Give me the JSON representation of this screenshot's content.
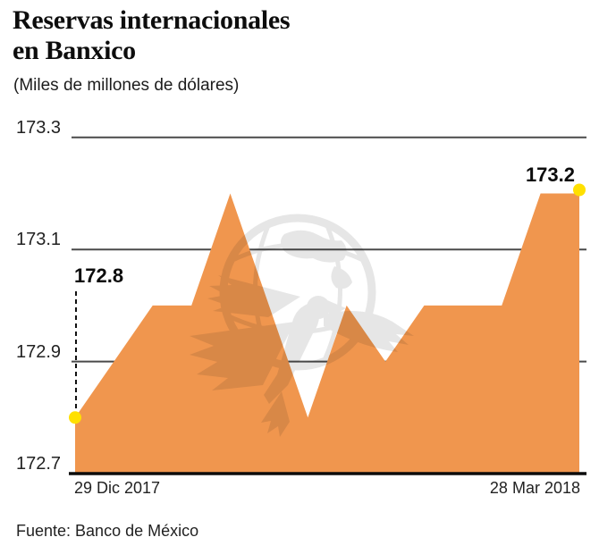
{
  "header": {
    "title_line1": "Reservas internacionales",
    "title_line2": "en Banxico",
    "subtitle": "(Miles de millones de dólares)"
  },
  "chart_data": {
    "type": "area",
    "title": "Reservas internacionales en Banxico",
    "unit_note": "Miles de millones de dólares",
    "x_first_label": "29 Dic 2017",
    "x_last_label": "28 Mar 2018",
    "values": [
      172.8,
      172.9,
      173.0,
      173.0,
      173.2,
      173.0,
      172.8,
      173.0,
      172.9,
      173.0,
      173.0,
      173.0,
      173.2,
      173.2
    ],
    "ylim": [
      172.7,
      173.3
    ],
    "yticks": [
      "173.3",
      "173.1",
      "172.9",
      "172.7"
    ],
    "first_point_label": "172.8",
    "last_point_label": "173.2",
    "grid": "horizontal",
    "legend": "none",
    "colors": {
      "area": "#F0964E",
      "marker": "#FFE000",
      "grid": "#4A4A4A",
      "axis": "#0C0C0C"
    }
  },
  "footer": {
    "source": "Fuente: Banco de México"
  }
}
